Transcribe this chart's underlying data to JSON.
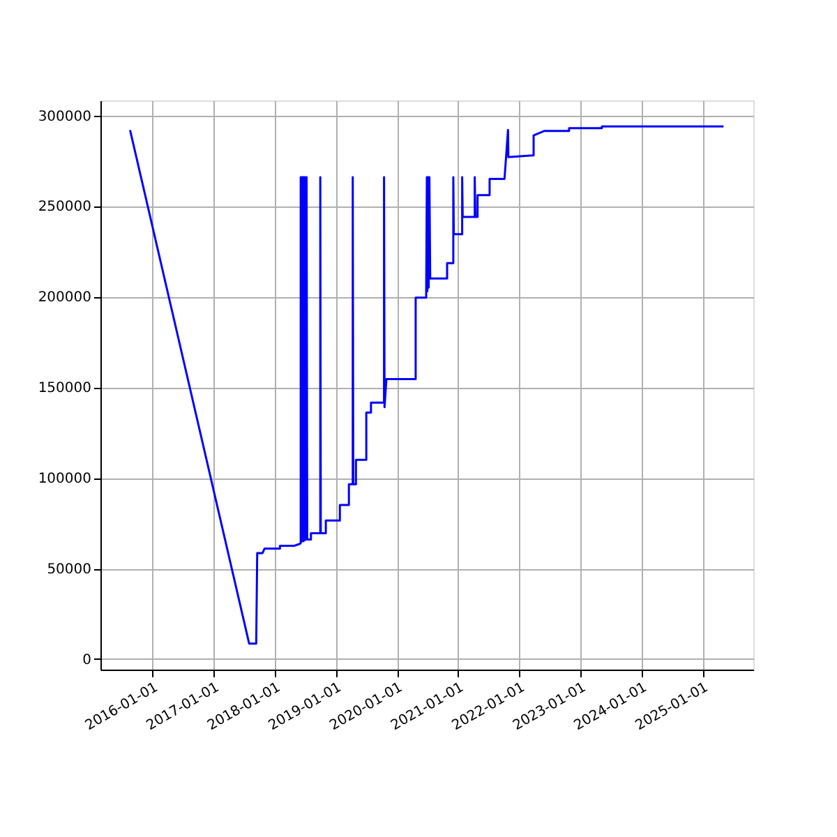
{
  "chart_data": {
    "type": "line",
    "x": [
      "2015-08-20",
      "2017-08-01",
      "2017-09-12",
      "2017-09-18",
      "2017-10-20",
      "2017-11-01",
      "2018-02-01",
      "2018-02-01",
      "2018-04-25",
      "2018-05-28",
      "2018-06-05",
      "2018-06-05",
      "2018-06-08",
      "2018-06-10",
      "2018-06-14",
      "2018-06-17",
      "2018-06-21",
      "2018-06-24",
      "2018-06-28",
      "2018-07-02",
      "2018-07-06",
      "2018-07-10",
      "2018-07-14",
      "2018-08-05",
      "2018-08-05",
      "2018-09-30",
      "2018-09-30",
      "2018-10-03",
      "2018-11-02",
      "2018-11-02",
      "2019-01-25",
      "2019-01-25",
      "2019-03-20",
      "2019-03-20",
      "2019-04-12",
      "2019-04-12",
      "2019-04-15",
      "2019-05-01",
      "2019-05-01",
      "2019-07-02",
      "2019-07-02",
      "2019-07-30",
      "2019-07-30",
      "2019-10-16",
      "2019-10-16",
      "2019-10-19",
      "2019-10-30",
      "2020-04-22",
      "2020-04-22",
      "2020-06-24",
      "2020-06-24",
      "2020-06-28",
      "2020-07-01",
      "2020-07-05",
      "2020-07-09",
      "2020-07-13",
      "2020-07-18",
      "2020-10-27",
      "2020-10-27",
      "2020-12-03",
      "2020-12-03",
      "2020-12-06",
      "2021-01-25",
      "2021-01-25",
      "2021-01-28",
      "2021-04-10",
      "2021-04-10",
      "2021-04-14",
      "2021-04-27",
      "2021-04-27",
      "2021-07-08",
      "2021-07-08",
      "2021-10-05",
      "2021-10-26",
      "2021-10-28",
      "2022-03-28",
      "2022-03-28",
      "2022-06-01",
      "2022-10-26",
      "2022-10-26",
      "2023-05-10",
      "2023-05-10",
      "2025-05-06"
    ],
    "series": [
      {
        "color": "#0000ff",
        "values": [
          292000,
          8500,
          8500,
          58500,
          58500,
          61000,
          61000,
          62500,
          62500,
          63500,
          64000,
          266000,
          65000,
          266000,
          65000,
          266000,
          65000,
          266000,
          65500,
          266000,
          66000,
          266000,
          66000,
          66000,
          69500,
          69500,
          266000,
          69500,
          69500,
          76500,
          76500,
          85000,
          85000,
          96500,
          96500,
          266000,
          96500,
          96500,
          110000,
          110000,
          136000,
          136000,
          141500,
          141500,
          266000,
          139000,
          154500,
          154500,
          199500,
          199500,
          202500,
          266000,
          203000,
          266000,
          205000,
          266000,
          210000,
          210000,
          218500,
          218500,
          266000,
          234500,
          234500,
          266000,
          244000,
          244000,
          266000,
          244000,
          244000,
          256000,
          256000,
          265000,
          265000,
          292000,
          277000,
          278000,
          289000,
          291500,
          291500,
          293000,
          293000,
          294000,
          294000
        ]
      }
    ],
    "xlim": [
      "2015-02-24",
      "2025-10-31"
    ],
    "xticks": [
      "2016-01-01",
      "2017-01-01",
      "2018-01-01",
      "2019-01-01",
      "2020-01-01",
      "2021-01-01",
      "2022-01-01",
      "2023-01-01",
      "2024-01-01",
      "2025-01-01"
    ],
    "ylim": [
      -5800,
      308300
    ],
    "yticks": [
      0,
      50000,
      100000,
      150000,
      200000,
      250000,
      300000
    ],
    "grid": true
  }
}
